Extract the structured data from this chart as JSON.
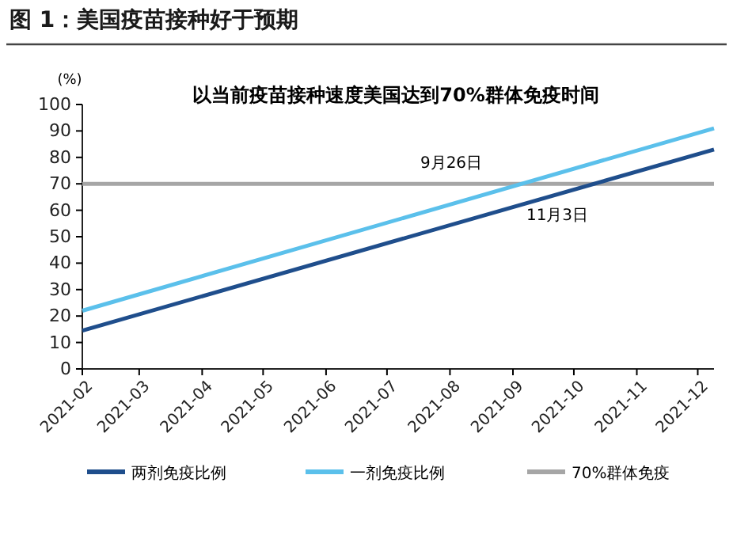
{
  "chart_data": {
    "type": "line",
    "title": "图 1：美国疫苗接种好于预期",
    "subtitle": "以当前疫苗接种速度美国达到70%群体免疫时间",
    "ylabel": "(%)",
    "x": [
      "2021-02-01",
      "2021-12-09"
    ],
    "series": [
      {
        "name": "两剂免疫比例",
        "color": "#1f4e8c",
        "values": [
          14.5,
          83
        ]
      },
      {
        "name": "一剂免疫比例",
        "color": "#5bc0eb",
        "values": [
          22,
          91
        ]
      },
      {
        "name": "70%群体免疫",
        "color": "#a6a6a6",
        "values": [
          70,
          70
        ]
      }
    ],
    "annotations": [
      "9月26日",
      "11月3日"
    ],
    "xlim": [
      "2021-02-01",
      "2021-12-09"
    ],
    "xticks": [
      "2021-02",
      "2021-03",
      "2021-04",
      "2021-05",
      "2021-06",
      "2021-07",
      "2021-08",
      "2021-09",
      "2021-10",
      "2021-11",
      "2021-12"
    ],
    "ylim": [
      0,
      100
    ],
    "yticks": [
      0,
      10,
      20,
      30,
      40,
      50,
      60,
      70,
      80,
      90,
      100
    ],
    "grid": false,
    "legend": "bottom",
    "marker": "none",
    "line_style": "solid"
  }
}
